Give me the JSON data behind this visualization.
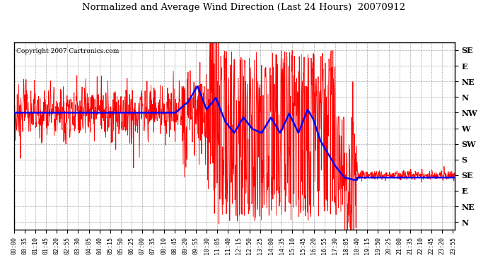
{
  "title": "Normalized and Average Wind Direction (Last 24 Hours)  20070912",
  "copyright": "Copyright 2007 Cartronics.com",
  "background_color": "#ffffff",
  "plot_bg_color": "#ffffff",
  "grid_color": "#aaaaaa",
  "ytick_labels": [
    "SE",
    "E",
    "NE",
    "N",
    "NW",
    "W",
    "SW",
    "S",
    "SE",
    "E",
    "NE",
    "N"
  ],
  "ytick_values": [
    0,
    1,
    2,
    3,
    4,
    5,
    6,
    7,
    8,
    9,
    10,
    11
  ],
  "ylim": [
    11.5,
    -0.5
  ],
  "xlim_hours": [
    0,
    24
  ],
  "red_color": "#ff0000",
  "blue_color": "#0000ff",
  "red_linewidth": 0.6,
  "blue_linewidth": 1.8,
  "xtick_interval_minutes": 35,
  "NW_val": 4,
  "SE_val": 8,
  "N_val": 11,
  "S_val": 7
}
